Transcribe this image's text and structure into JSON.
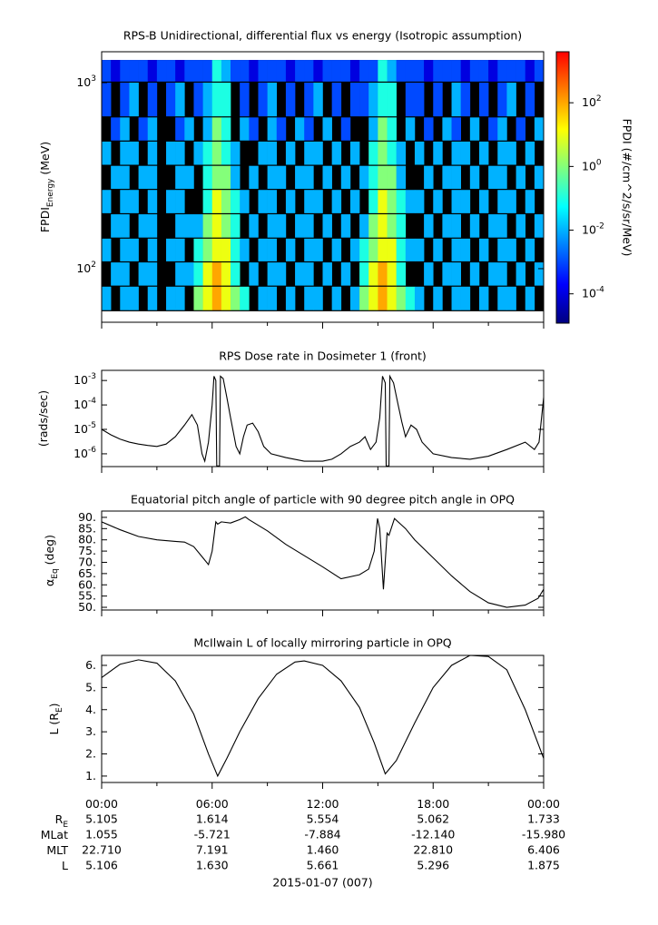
{
  "xaxis": {
    "xlim": [
      0,
      24
    ],
    "xticks": [
      {
        "value": 0,
        "label": "00:00"
      },
      {
        "value": 6,
        "label": "06:00"
      },
      {
        "value": 12,
        "label": "12:00"
      },
      {
        "value": 18,
        "label": "18:00"
      },
      {
        "value": 24,
        "label": "00:00"
      }
    ],
    "xminorticks": [
      3,
      9,
      15,
      21
    ]
  },
  "chart_data": [
    {
      "type": "heatmap",
      "title": "RPS-B  Unidirectional, differential flux vs energy (Isotropic assumption)",
      "ylabel": [
        {
          "text": "FPDI"
        },
        {
          "sub": "Energy"
        },
        {
          "text": " (MeV)"
        }
      ],
      "ylog": true,
      "ylim": [
        51.5,
        1466
      ],
      "yticks": [
        {
          "value": 100,
          "label": "10",
          "exp": "2"
        },
        {
          "value": 1000,
          "label": "10",
          "exp": "3"
        }
      ],
      "background": "#000000",
      "x_edges": [
        0,
        0.5,
        1,
        1.5,
        2,
        2.5,
        3,
        3.5,
        4,
        4.5,
        5,
        5.5,
        6,
        6.5,
        7,
        7.5,
        8,
        8.5,
        9,
        9.5,
        10,
        10.5,
        11,
        11.5,
        12,
        12.5,
        13,
        13.5,
        14,
        14.5,
        15,
        15.5,
        16,
        16.5,
        17,
        17.5,
        18,
        18.5,
        19,
        19.5,
        20,
        20.5,
        21,
        21.5,
        22,
        22.5,
        23,
        23.5,
        24
      ],
      "y_edges": [
        59,
        80,
        108,
        145,
        196,
        265,
        357,
        482,
        650,
        1000,
        1324
      ],
      "z": [
        [
          0.01,
          null,
          0.01,
          0.01,
          null,
          0.01,
          null,
          0.01,
          0.01,
          null,
          1,
          10,
          100,
          10,
          1,
          0.1,
          null,
          0.01,
          0.01,
          null,
          0.01,
          null,
          0.01,
          0.01,
          null,
          0.01,
          null,
          0.01,
          1,
          10,
          100,
          10,
          1,
          0.1,
          0.01,
          null,
          0.01,
          null,
          0.01,
          0.01,
          null,
          0.01,
          null,
          0.01,
          0.01,
          null,
          0.01,
          null
        ],
        [
          null,
          0.01,
          0.01,
          null,
          0.01,
          0.01,
          null,
          null,
          0.01,
          0.01,
          0.1,
          10,
          100,
          10,
          0.1,
          null,
          0.01,
          null,
          0.01,
          0.01,
          null,
          0.01,
          0.01,
          null,
          0.01,
          null,
          0.01,
          null,
          0.1,
          10,
          100,
          10,
          0.1,
          null,
          null,
          0.01,
          null,
          0.01,
          0.01,
          null,
          0.01,
          null,
          0.01,
          0.01,
          null,
          0.01,
          null,
          0.01
        ],
        [
          0.01,
          null,
          0.01,
          0.01,
          null,
          0.01,
          null,
          0.01,
          0.01,
          null,
          0.1,
          1,
          10,
          10,
          0.1,
          0.01,
          null,
          0.01,
          0.01,
          null,
          0.01,
          null,
          0.01,
          0.01,
          null,
          0.01,
          null,
          0.01,
          0.1,
          1,
          10,
          10,
          0.1,
          0.01,
          0.01,
          null,
          0.01,
          null,
          0.01,
          0.01,
          null,
          0.01,
          null,
          0.01,
          0.01,
          null,
          0.01,
          null
        ],
        [
          null,
          0.01,
          0.01,
          null,
          0.01,
          0.01,
          null,
          null,
          0.01,
          0.01,
          0.01,
          1,
          10,
          1,
          0.1,
          null,
          0.01,
          null,
          0.01,
          0.01,
          null,
          0.01,
          0.01,
          null,
          0.01,
          null,
          0.01,
          null,
          0.01,
          1,
          10,
          1,
          0.1,
          null,
          null,
          0.01,
          null,
          0.01,
          0.01,
          null,
          0.01,
          null,
          0.01,
          0.01,
          null,
          0.01,
          null,
          0.01
        ],
        [
          0.01,
          null,
          0.01,
          0.01,
          null,
          0.01,
          null,
          0.01,
          0.01,
          null,
          null,
          0.1,
          10,
          1,
          0.1,
          0.01,
          null,
          0.01,
          0.01,
          null,
          0.01,
          null,
          0.01,
          0.01,
          null,
          0.01,
          null,
          0.01,
          null,
          0.1,
          10,
          1,
          0.1,
          0.01,
          0.01,
          null,
          0.01,
          null,
          0.01,
          0.01,
          null,
          0.01,
          null,
          0.01,
          0.01,
          null,
          0.01,
          null
        ],
        [
          null,
          0.01,
          0.01,
          null,
          0.01,
          0.01,
          null,
          null,
          0.01,
          0.01,
          null,
          0.1,
          1,
          1,
          0.01,
          null,
          0.01,
          null,
          0.01,
          0.01,
          null,
          0.01,
          0.01,
          null,
          0.01,
          null,
          0.01,
          null,
          0.01,
          0.1,
          1,
          1,
          0.01,
          null,
          null,
          0.01,
          null,
          0.01,
          0.01,
          null,
          0.01,
          null,
          0.01,
          0.01,
          null,
          0.01,
          null,
          0.01
        ],
        [
          0.01,
          null,
          0.01,
          0.01,
          null,
          0.01,
          null,
          0.01,
          0.01,
          null,
          0.01,
          0.1,
          1,
          0.1,
          0.01,
          null,
          null,
          0.01,
          0.01,
          null,
          0.01,
          null,
          0.01,
          0.01,
          null,
          0.01,
          null,
          0.01,
          null,
          0.1,
          1,
          0.1,
          0.01,
          null,
          0.01,
          null,
          0.01,
          null,
          0.01,
          0.01,
          null,
          0.01,
          null,
          0.01,
          0.01,
          null,
          0.01,
          null
        ],
        [
          null,
          0.001,
          0.01,
          null,
          0.001,
          0.01,
          null,
          null,
          0.001,
          0.01,
          null,
          0.01,
          1,
          0.1,
          null,
          0.01,
          0.001,
          null,
          0.01,
          0.001,
          null,
          0.01,
          0.001,
          null,
          0.01,
          null,
          0.001,
          null,
          null,
          0.01,
          1,
          0.1,
          null,
          0.01,
          null,
          0.001,
          null,
          0.01,
          0.001,
          null,
          0.01,
          null,
          0.001,
          0.01,
          null,
          0.001,
          null,
          0.01
        ],
        [
          0.001,
          null,
          0.001,
          0.01,
          null,
          0.001,
          null,
          0.001,
          0.01,
          null,
          0.001,
          0.01,
          0.1,
          0.1,
          null,
          0.001,
          null,
          0.001,
          0.01,
          null,
          0.001,
          null,
          0.001,
          0.01,
          null,
          0.001,
          null,
          0.001,
          0.001,
          0.01,
          0.1,
          0.1,
          null,
          0.001,
          0.001,
          null,
          0.001,
          null,
          0.01,
          0.001,
          null,
          0.001,
          null,
          0.001,
          0.01,
          null,
          0.001,
          null
        ],
        [
          0.001,
          0.0001,
          0.001,
          0.001,
          0.001,
          0.0001,
          0.001,
          0.001,
          0.0001,
          0.001,
          0.001,
          0.001,
          0.1,
          0.01,
          0.001,
          0.001,
          0.0001,
          0.001,
          0.001,
          0.001,
          0.0001,
          0.001,
          0.001,
          0.0001,
          0.001,
          0.001,
          0.001,
          0.0001,
          0.001,
          0.001,
          0.1,
          0.01,
          0.001,
          0.001,
          0.001,
          0.0001,
          0.001,
          0.001,
          0.001,
          0.0001,
          0.001,
          0.001,
          0.0001,
          0.001,
          0.001,
          0.001,
          0.0001,
          0.001
        ]
      ],
      "colorbar": {
        "label": "FPDI (#/cm^2/s/sr/MeV)",
        "log": true,
        "zlim": [
          1.2e-05,
          4000
        ],
        "ticks": [
          {
            "value": 0.0001,
            "label": "10",
            "exp": "-4"
          },
          {
            "value": 0.01,
            "label": "10",
            "exp": "-2"
          },
          {
            "value": 1,
            "label": "10",
            "exp": "0"
          },
          {
            "value": 100,
            "label": "10",
            "exp": "2"
          }
        ],
        "colormap": [
          "#00007f",
          "#0000ff",
          "#007fff",
          "#00ffff",
          "#7fff7f",
          "#ffff00",
          "#ff7f00",
          "#ff0000"
        ]
      }
    },
    {
      "type": "line",
      "title": "RPS  Dose rate in Dosimeter 1 (front)",
      "ylabel": [
        {
          "text": "(rads/sec)"
        }
      ],
      "ylog": true,
      "ylim": [
        3e-07,
        0.0026
      ],
      "color": "#000000",
      "yticks": [
        {
          "value": 1e-06,
          "label": "10",
          "exp": "-6"
        },
        {
          "value": 1e-05,
          "label": "10",
          "exp": "-5"
        },
        {
          "value": 0.0001,
          "label": "10",
          "exp": "-4"
        },
        {
          "value": 0.001,
          "label": "10",
          "exp": "-3"
        }
      ],
      "x": [
        0,
        0.5,
        1,
        1.5,
        2,
        2.5,
        3,
        3.5,
        4,
        4.5,
        4.9,
        5.2,
        5.45,
        5.6,
        5.8,
        6.0,
        6.1,
        6.2,
        6.25,
        6.4,
        6.45,
        6.6,
        6.8,
        7.0,
        7.3,
        7.5,
        7.7,
        7.9,
        8.2,
        8.5,
        8.8,
        9.2,
        10,
        11,
        12,
        12.5,
        13,
        13.5,
        14,
        14.3,
        14.6,
        14.9,
        15.1,
        15.25,
        15.4,
        15.45,
        15.6,
        15.65,
        15.85,
        16.1,
        16.3,
        16.5,
        16.8,
        17.1,
        17.4,
        18,
        19,
        20,
        21,
        22,
        23,
        23.5,
        23.75,
        24
      ],
      "values": [
        1e-05,
        6e-06,
        4e-06,
        3e-06,
        2.5e-06,
        2.2e-06,
        2e-06,
        2.5e-06,
        5e-06,
        1.5e-05,
        4e-05,
        1.5e-05,
        1e-06,
        5e-07,
        3e-06,
        0.0001,
        0.0015,
        0.001,
        3.2e-07,
        3.2e-07,
        0.0015,
        0.0012,
        0.0002,
        3e-05,
        2e-06,
        1e-06,
        5e-06,
        1.5e-05,
        1.8e-05,
        8e-06,
        2e-06,
        1e-06,
        7e-07,
        5e-07,
        5e-07,
        6e-07,
        1e-06,
        2e-06,
        3e-06,
        5e-06,
        1.5e-06,
        3e-06,
        3e-05,
        0.0015,
        0.0008,
        3.2e-07,
        3.2e-07,
        0.0015,
        0.0008,
        0.0001,
        2e-05,
        5e-06,
        1.5e-05,
        1e-05,
        3e-06,
        1e-06,
        7e-07,
        6e-07,
        8e-07,
        1.5e-06,
        3e-06,
        1.5e-06,
        3e-06,
        0.0002
      ]
    },
    {
      "type": "line",
      "title": "Equatorial pitch angle of particle with 90 degree pitch angle in OPQ",
      "ylabel": [
        {
          "text": "α"
        },
        {
          "sub": "Eq"
        },
        {
          "text": " (deg)"
        }
      ],
      "ylog": false,
      "ylim": [
        48.8,
        92.8
      ],
      "color": "#000000",
      "yticks": [
        {
          "value": 50,
          "label": "50."
        },
        {
          "value": 55,
          "label": "55."
        },
        {
          "value": 60,
          "label": "60."
        },
        {
          "value": 65,
          "label": "65."
        },
        {
          "value": 70,
          "label": "70."
        },
        {
          "value": 75,
          "label": "75."
        },
        {
          "value": 80,
          "label": "80."
        },
        {
          "value": 85,
          "label": "85."
        },
        {
          "value": 90,
          "label": "90."
        }
      ],
      "x": [
        0,
        1,
        2,
        3,
        4,
        4.5,
        5,
        5.5,
        5.8,
        6.0,
        6.2,
        6.3,
        6.5,
        7,
        7.5,
        7.8,
        8,
        9,
        10,
        11,
        12,
        13,
        14,
        14.5,
        14.8,
        14.98,
        15.1,
        15.3,
        15.5,
        15.6,
        15.9,
        16.5,
        17,
        18,
        19,
        20,
        21,
        22,
        23,
        23.7,
        24
      ],
      "values": [
        88,
        84.5,
        81.5,
        80,
        79.3,
        79,
        77,
        72,
        69,
        75,
        88,
        87,
        88,
        87.5,
        89,
        90.2,
        89,
        84,
        78,
        73,
        68,
        62.7,
        64.5,
        67,
        75,
        89.5,
        85,
        58,
        83,
        82,
        89.5,
        85,
        80,
        72,
        64,
        57,
        52,
        50,
        51,
        54,
        58
      ]
    },
    {
      "type": "line",
      "title": "McIlwain L of locally mirroring particle in OPQ",
      "ylabel": [
        {
          "text": "L (R"
        },
        {
          "sub": "E"
        },
        {
          "text": ")"
        }
      ],
      "ylog": false,
      "ylim": [
        0.71,
        6.45
      ],
      "color": "#000000",
      "yticks": [
        {
          "value": 1,
          "label": "1."
        },
        {
          "value": 2,
          "label": "2."
        },
        {
          "value": 3,
          "label": "3."
        },
        {
          "value": 4,
          "label": "4."
        },
        {
          "value": 5,
          "label": "5."
        },
        {
          "value": 6,
          "label": "6."
        }
      ],
      "x": [
        0,
        1,
        2,
        3,
        4,
        5,
        5.8,
        6.3,
        6.8,
        7.5,
        8.5,
        9.5,
        10.5,
        11,
        12,
        13,
        14,
        14.8,
        15.4,
        16,
        17,
        18,
        19,
        20,
        21,
        22,
        23,
        24
      ],
      "values": [
        5.45,
        6.05,
        6.25,
        6.1,
        5.3,
        3.8,
        2.0,
        1.0,
        1.8,
        3.0,
        4.5,
        5.6,
        6.15,
        6.2,
        6.0,
        5.3,
        4.1,
        2.5,
        1.1,
        1.7,
        3.4,
        5.0,
        6.0,
        6.45,
        6.4,
        5.8,
        4.0,
        1.8
      ]
    }
  ],
  "ephemeris": {
    "rows": [
      {
        "label": [
          {
            "text": "R"
          },
          {
            "sub": "E"
          }
        ],
        "values": [
          "5.105",
          "1.614",
          "5.554",
          "5.062",
          "1.733"
        ]
      },
      {
        "label": [
          {
            "text": "MLat"
          }
        ],
        "values": [
          "1.055",
          "-5.721",
          "-7.884",
          "-12.140",
          "-15.980"
        ]
      },
      {
        "label": [
          {
            "text": "MLT"
          }
        ],
        "values": [
          "22.710",
          "7.191",
          "1.460",
          "22.810",
          "6.406"
        ]
      },
      {
        "label": [
          {
            "text": "L"
          }
        ],
        "values": [
          "5.106",
          "1.630",
          "5.661",
          "5.296",
          "1.875"
        ]
      }
    ],
    "date": "2015-01-07 (007)"
  }
}
